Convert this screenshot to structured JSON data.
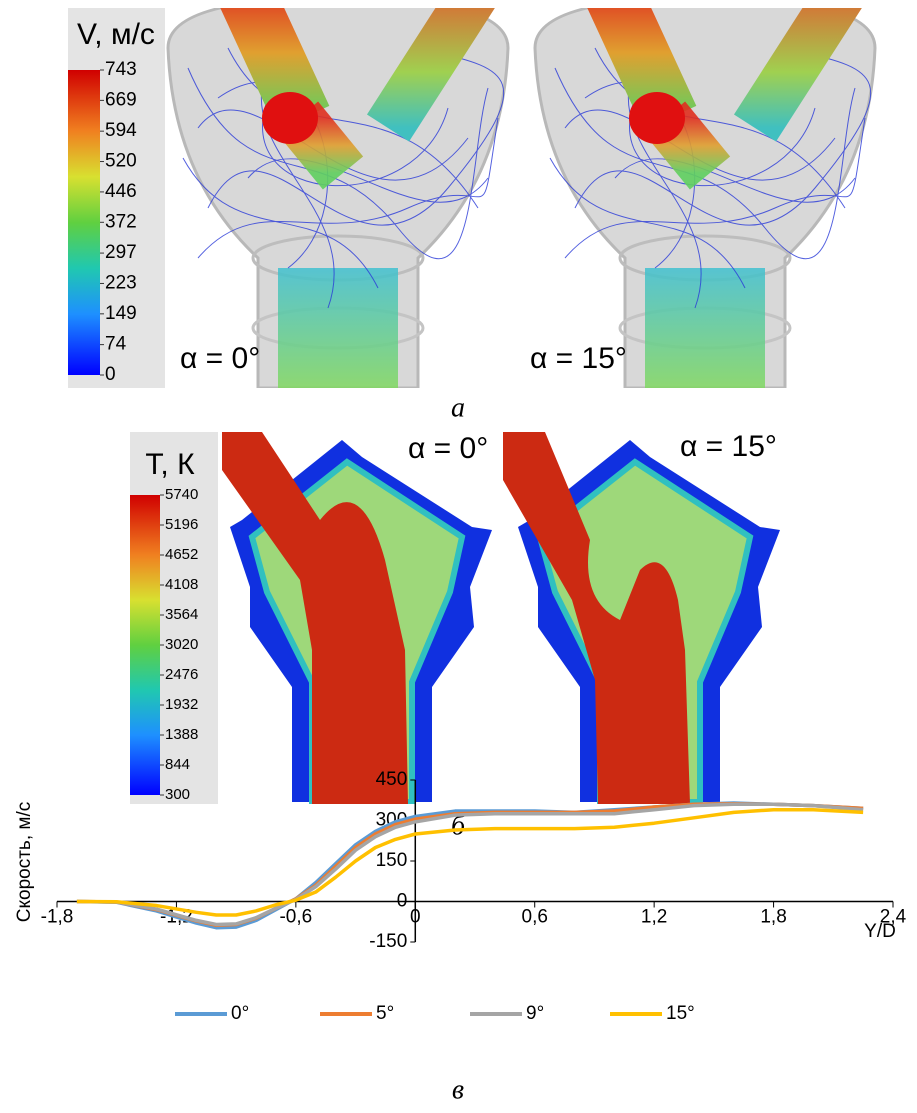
{
  "panel_a": {
    "colorbar": {
      "title": "V, м/с",
      "range": [
        0,
        743
      ],
      "ticks": [
        743,
        669,
        594,
        520,
        446,
        372,
        297,
        223,
        149,
        74,
        0
      ]
    },
    "labels": [
      "α = 0°",
      "α = 15°"
    ],
    "caption": "а"
  },
  "panel_b": {
    "colorbar": {
      "title": "T, К",
      "range": [
        300,
        5740
      ],
      "ticks": [
        5740,
        5196,
        4652,
        4108,
        3564,
        3020,
        2476,
        1932,
        1388,
        844,
        300
      ]
    },
    "labels": [
      "α = 0°",
      "α = 15°"
    ],
    "caption": "б"
  },
  "chart_data": {
    "type": "line",
    "ylabel": "Скорость, м/с",
    "xlabel": "Y/D",
    "caption": "в",
    "x": [
      -1.7,
      -1.5,
      -1.3,
      -1.1,
      -1.0,
      -0.9,
      -0.8,
      -0.7,
      -0.6,
      -0.5,
      -0.4,
      -0.3,
      -0.2,
      -0.1,
      0,
      0.2,
      0.4,
      0.6,
      0.8,
      1.0,
      1.2,
      1.4,
      1.6,
      1.8,
      2.0,
      2.25
    ],
    "series": [
      {
        "name": "0°",
        "color": "#5b9bd5",
        "values": [
          0,
          -3,
          -35,
          -80,
          -97,
          -95,
          -70,
          -30,
          10,
          70,
          140,
          210,
          260,
          295,
          315,
          335,
          335,
          335,
          330,
          340,
          350,
          360,
          365,
          360,
          355,
          345
        ]
      },
      {
        "name": "5°",
        "color": "#ed7d31",
        "values": [
          0,
          -2,
          -30,
          -72,
          -88,
          -85,
          -62,
          -25,
          10,
          60,
          130,
          200,
          250,
          285,
          305,
          325,
          330,
          330,
          330,
          335,
          350,
          360,
          362,
          360,
          355,
          345
        ]
      },
      {
        "name": "9°",
        "color": "#a5a5a5",
        "values": [
          0,
          -2,
          -28,
          -70,
          -85,
          -83,
          -60,
          -25,
          8,
          55,
          120,
          190,
          240,
          275,
          295,
          320,
          325,
          325,
          325,
          325,
          340,
          355,
          360,
          360,
          355,
          340
        ]
      },
      {
        "name": "15°",
        "color": "#ffc000",
        "values": [
          0,
          -1,
          -15,
          -40,
          -50,
          -50,
          -35,
          -12,
          5,
          35,
          90,
          150,
          200,
          230,
          250,
          265,
          270,
          270,
          270,
          275,
          290,
          310,
          330,
          340,
          340,
          330
        ]
      }
    ],
    "xlim": [
      -1.8,
      2.4
    ],
    "ylim": [
      -150,
      450
    ],
    "xticks": [
      {
        "value": -1.8,
        "label": "-1,8"
      },
      {
        "value": -1.2,
        "label": "-1,2"
      },
      {
        "value": -0.6,
        "label": "-0,6"
      },
      0,
      {
        "value": 0.6,
        "label": "0,6"
      },
      {
        "value": 1.2,
        "label": "1,2"
      },
      {
        "value": 1.8,
        "label": "1,8"
      },
      {
        "value": 2.4,
        "label": "2,4"
      }
    ],
    "yticks": [
      -150,
      0,
      150,
      300,
      450
    ],
    "legend": "bottom",
    "grid": false
  }
}
